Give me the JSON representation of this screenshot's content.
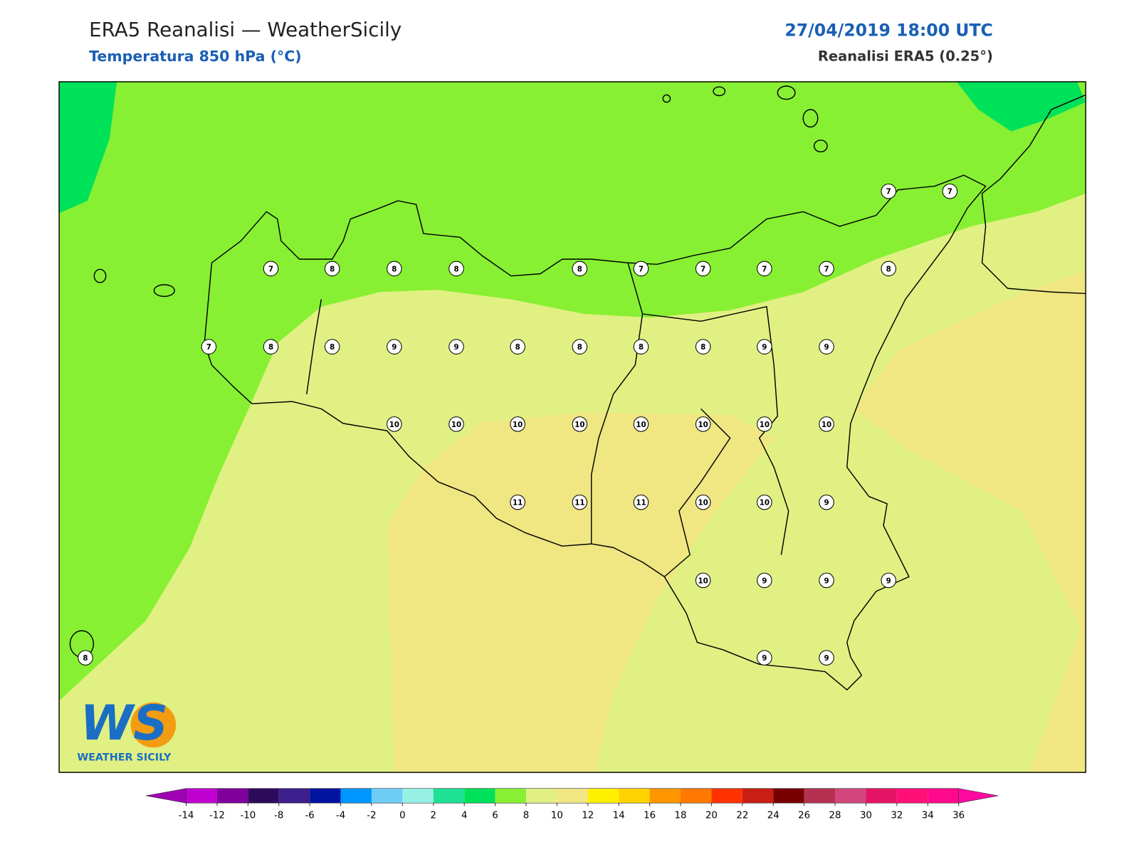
{
  "header": {
    "title": "ERA5 Reanalisi — WeatherSicily",
    "subtitle": "Temperatura 850 hPa (°C)",
    "datetime": "27/04/2019 18:00 UTC",
    "source": "Reanalisi ERA5 (0.25°)"
  },
  "map": {
    "values": [
      7,
      7,
      7,
      8,
      8,
      8,
      8,
      7,
      7,
      7,
      7,
      8,
      7,
      8,
      8,
      9,
      9,
      8,
      8,
      8,
      8,
      9,
      9,
      10,
      10,
      10,
      10,
      10,
      10,
      10,
      10,
      11,
      11,
      11,
      10,
      10,
      9,
      10,
      9,
      9,
      9,
      9,
      9,
      8
    ]
  },
  "colorbar": {
    "ticks": [
      -14,
      -12,
      -10,
      -8,
      -6,
      -4,
      -2,
      0,
      2,
      4,
      6,
      8,
      10,
      12,
      14,
      16,
      18,
      20,
      22,
      24,
      26,
      28,
      30,
      32,
      34,
      36
    ],
    "colors": [
      "#c000d0",
      "#80009c",
      "#2d0a5a",
      "#3c1e8c",
      "#0014a0",
      "#0096ff",
      "#6ecdf5",
      "#96f0e6",
      "#1ee196",
      "#00e15a",
      "#87f032",
      "#e1f082",
      "#f0e682",
      "#fff000",
      "#ffd200",
      "#ff9600",
      "#ff7800",
      "#ff3200",
      "#c81e14",
      "#780000",
      "#b43250",
      "#d2467d",
      "#e61464",
      "#ff0f78",
      "#ff0a8c"
    ],
    "under": "#a000b4",
    "over": "#ff0aa0"
  },
  "logo": {
    "mark": "WS",
    "name": "WEATHER SICILY"
  }
}
